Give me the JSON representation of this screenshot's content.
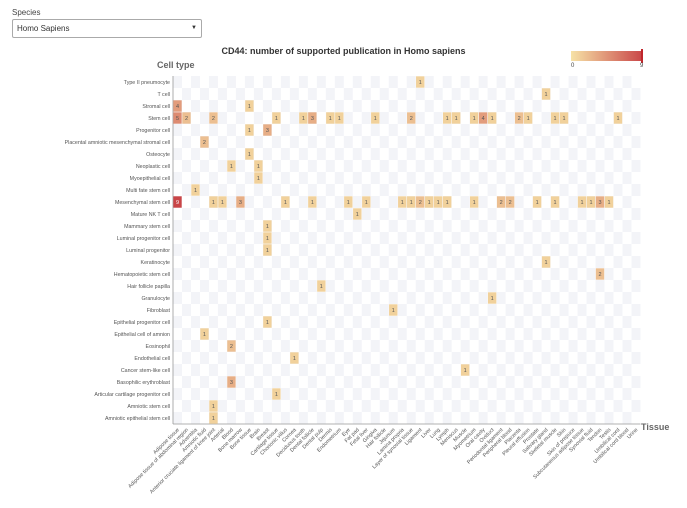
{
  "species": {
    "label": "Species",
    "selected": "Homo Sapiens"
  },
  "chart_data": {
    "type": "heatmap",
    "title": "CD44: number of supported publication in Homo sapiens",
    "ylabel": "Cell type",
    "xlabel": "Tissue",
    "legend": {
      "min": "0",
      "max": "9",
      "position": "top-right"
    },
    "color_scale": {
      "low": "#f6e2a6",
      "high": "#c94547"
    },
    "x": [
      "Adipose tissue",
      "Adipose tissue of abdominal region",
      "Adventitia",
      "Amniotic fluid",
      "Anterior cruciate ligament of knee joint",
      "Arterial",
      "Blood",
      "Bone marrow",
      "Bone tissue",
      "Brain",
      "Breast",
      "Cartilage tissue",
      "Chorionic villus",
      "Cornea",
      "Deciduous tooth",
      "Dental follicle",
      "Dental pulp",
      "Dermis",
      "Endometrium",
      "Eye",
      "Fat pad",
      "Fetal liver",
      "Gingiva",
      "Hair follicle",
      "Jejunum",
      "Lamina propria",
      "Layer of synovial tissue",
      "Ligament",
      "Liver",
      "Lung",
      "Lymph",
      "Meniscus",
      "Muscle",
      "Myometrium",
      "Oral cavity",
      "Oviduct",
      "Periodontal ligament",
      "Peripheral blood",
      "Placenta",
      "Pleural effusion",
      "Prostate",
      "Salivary gland",
      "Skeletal muscle",
      "Skin",
      "Skin of prepuce",
      "Subcutaneous adipose tissue",
      "Synovial fluid",
      "Tendon",
      "Testis",
      "Umbilical cord",
      "Umbilical cord blood",
      "Urine"
    ],
    "y": [
      "Type II pneumocyte",
      "T cell",
      "Stromal cell",
      "Stem cell",
      "Progenitor cell",
      "Placental amniotic mesenchymal stromal cell",
      "Osteocyte",
      "Neoplastic cell",
      "Myoepithelial cell",
      "Multi fate stem cell",
      "Mesenchymal stem cell",
      "Mature NK T cell",
      "Mammary stem cell",
      "Luminal progenitor cell",
      "Luminal progenitor",
      "Keratinocyte",
      "Hematopoietic stem cell",
      "Hair follicle papilla",
      "Granulocyte",
      "Fibroblast",
      "Epithelial progenitor cell",
      "Epithelial cell of amnion",
      "Eosinophil",
      "Endothelial cell",
      "Cancer stem-like cell",
      "Basophilic erythroblast",
      "Articular cartilage progenitor cell",
      "Amniotic stem cell",
      "Amniotic epithelial stem cell"
    ],
    "values": [
      [
        27,
        0,
        1
      ],
      [
        41,
        1,
        1
      ],
      [
        0,
        2,
        4
      ],
      [
        8,
        2,
        1
      ],
      [
        0,
        3,
        5
      ],
      [
        1,
        3,
        2
      ],
      [
        4,
        3,
        2
      ],
      [
        11,
        3,
        1
      ],
      [
        14,
        3,
        1
      ],
      [
        15,
        3,
        3
      ],
      [
        17,
        3,
        1
      ],
      [
        18,
        3,
        1
      ],
      [
        22,
        3,
        1
      ],
      [
        26,
        3,
        2
      ],
      [
        30,
        3,
        1
      ],
      [
        31,
        3,
        1
      ],
      [
        33,
        3,
        1
      ],
      [
        34,
        3,
        4
      ],
      [
        35,
        3,
        1
      ],
      [
        38,
        3,
        2
      ],
      [
        39,
        3,
        1
      ],
      [
        42,
        3,
        1
      ],
      [
        43,
        3,
        1
      ],
      [
        49,
        3,
        1
      ],
      [
        8,
        4,
        1
      ],
      [
        10,
        4,
        3
      ],
      [
        3,
        5,
        2
      ],
      [
        8,
        6,
        1
      ],
      [
        6,
        7,
        1
      ],
      [
        9,
        7,
        1
      ],
      [
        9,
        8,
        1
      ],
      [
        2,
        9,
        1
      ],
      [
        0,
        10,
        9
      ],
      [
        4,
        10,
        1
      ],
      [
        5,
        10,
        1
      ],
      [
        7,
        10,
        3
      ],
      [
        12,
        10,
        1
      ],
      [
        15,
        10,
        1
      ],
      [
        19,
        10,
        1
      ],
      [
        21,
        10,
        1
      ],
      [
        25,
        10,
        1
      ],
      [
        26,
        10,
        1
      ],
      [
        27,
        10,
        2
      ],
      [
        28,
        10,
        1
      ],
      [
        29,
        10,
        1
      ],
      [
        30,
        10,
        1
      ],
      [
        33,
        10,
        1
      ],
      [
        36,
        10,
        2
      ],
      [
        37,
        10,
        2
      ],
      [
        40,
        10,
        1
      ],
      [
        42,
        10,
        1
      ],
      [
        45,
        10,
        1
      ],
      [
        46,
        10,
        1
      ],
      [
        47,
        10,
        3
      ],
      [
        48,
        10,
        1
      ],
      [
        20,
        11,
        1
      ],
      [
        10,
        12,
        1
      ],
      [
        10,
        13,
        1
      ],
      [
        10,
        14,
        1
      ],
      [
        41,
        15,
        1
      ],
      [
        47,
        16,
        2
      ],
      [
        16,
        17,
        1
      ],
      [
        35,
        18,
        1
      ],
      [
        24,
        19,
        1
      ],
      [
        10,
        20,
        1
      ],
      [
        3,
        21,
        1
      ],
      [
        6,
        22,
        2
      ],
      [
        13,
        23,
        1
      ],
      [
        32,
        24,
        1
      ],
      [
        6,
        25,
        3
      ],
      [
        11,
        26,
        1
      ],
      [
        4,
        27,
        1
      ],
      [
        4,
        28,
        1
      ]
    ]
  }
}
